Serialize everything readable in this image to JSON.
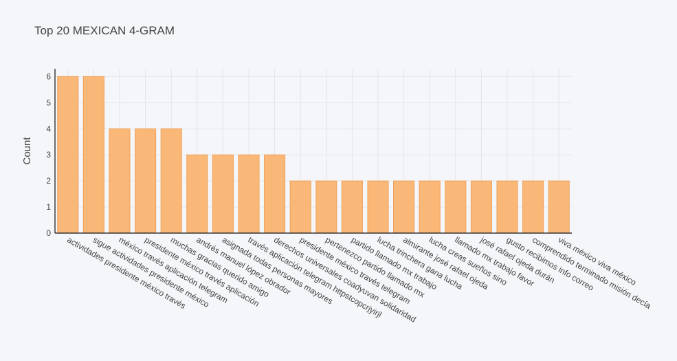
{
  "chart_data": {
    "type": "bar",
    "title": "Top 20 MEXICAN 4-GRAM",
    "xlabel": "",
    "ylabel": "Count",
    "ylim": [
      0,
      6.3
    ],
    "yticks": [
      0,
      1,
      2,
      3,
      4,
      5,
      6
    ],
    "grid": true,
    "bar_color": "#f9b878",
    "bar_edge_color": "#f0a05a",
    "background": "#f5f6f9",
    "categories": [
      "actividades presidente méxico través",
      "sigue actividades presidente méxico",
      "méxico través aplicación telegram",
      "presidente méxico través aplicación",
      "muchas gracias querido amigo",
      "andrés manuel lópez obrador",
      "asignada todas personas mayores",
      "través aplicación telegram httpstcopcrjyirjl",
      "derechos universales coadyuvan solidaridad",
      "presidente méxico través telegram",
      "pertenezco partido llamado mx",
      "partido llamado mx trabajo",
      "lucha trinchera gana lucha",
      "almirante josé rafael ojeda",
      "lucha creas sueños sino",
      "llamado mx trabajo favor",
      "josé rafael ojeda durán",
      "gusto recibimos info correo",
      "comprendido terminado misión decía",
      "viva méxico viva méxico"
    ],
    "values": [
      6,
      6,
      4,
      4,
      4,
      3,
      3,
      3,
      3,
      2,
      2,
      2,
      2,
      2,
      2,
      2,
      2,
      2,
      2,
      2
    ]
  }
}
